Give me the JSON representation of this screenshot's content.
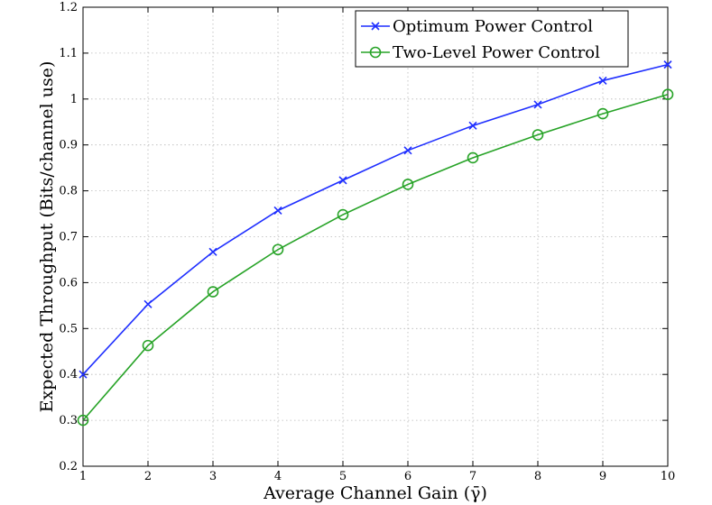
{
  "chart_data": {
    "type": "line",
    "title": "",
    "xlabel": "Average Channel Gain (γ̄)",
    "ylabel": "Expected Throughput (Bits/channel use)",
    "xlim": [
      1,
      10
    ],
    "ylim": [
      0.2,
      1.2
    ],
    "xticks": [
      1,
      2,
      3,
      4,
      5,
      6,
      7,
      8,
      9,
      10
    ],
    "yticks": [
      0.2,
      0.3,
      0.4,
      0.5,
      0.6,
      0.7,
      0.8,
      0.9,
      1,
      1.1,
      1.2
    ],
    "xtick_labels": [
      "1",
      "2",
      "3",
      "4",
      "5",
      "6",
      "7",
      "8",
      "9",
      "10"
    ],
    "ytick_labels": [
      "0.2",
      "0.3",
      "0.4",
      "0.5",
      "0.6",
      "0.7",
      "0.8",
      "0.9",
      "1",
      "1.1",
      "1.2"
    ],
    "grid": true,
    "legend_position": "top-right",
    "x": [
      1,
      2,
      3,
      4,
      5,
      6,
      7,
      8,
      9,
      10
    ],
    "series": [
      {
        "name": "Optimum Power Control",
        "color": "#1f2fff",
        "marker": "x",
        "values": [
          0.4,
          0.553,
          0.667,
          0.757,
          0.823,
          0.888,
          0.942,
          0.988,
          1.04,
          1.075
        ]
      },
      {
        "name": "Two-Level Power Control",
        "color": "#27a327",
        "marker": "circle",
        "values": [
          0.3,
          0.463,
          0.58,
          0.672,
          0.748,
          0.814,
          0.872,
          0.922,
          0.968,
          1.01
        ]
      }
    ]
  }
}
